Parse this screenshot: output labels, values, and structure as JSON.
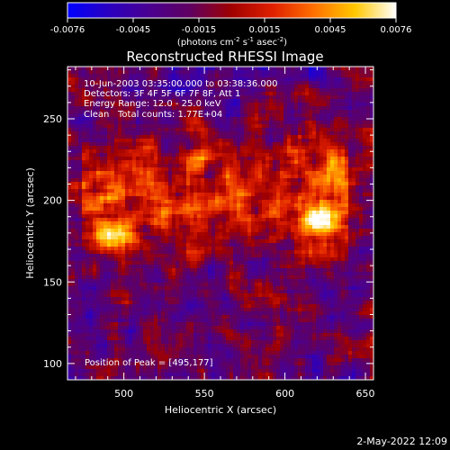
{
  "chart_data": {
    "type": "heatmap",
    "title": "Reconstructed RHESSI Image",
    "colorbar": {
      "min": -0.0076,
      "max": 0.0076,
      "tick_labels": [
        "-0.0076",
        "-0.0045",
        "-0.0015",
        "0.0015",
        "0.0045",
        "0.0076"
      ],
      "unit_parts": {
        "a": "(photons cm",
        "b": "-2",
        "c": " s",
        "d": "-1",
        "e": " asec",
        "f": "-2",
        "g": ")"
      },
      "colormap": [
        "#0000ff",
        "#2a00c0",
        "#4a0090",
        "#600060",
        "#a00000",
        "#e02000",
        "#ff7000",
        "#ffc800",
        "#ffffff"
      ]
    },
    "xlabel": "Heliocentric X (arcsec)",
    "ylabel": "Heliocentric Y (arcsec)",
    "xlim": [
      465,
      655
    ],
    "ylim": [
      90,
      282
    ],
    "xticks": [
      500,
      550,
      600,
      650
    ],
    "yticks": [
      100,
      150,
      200,
      250
    ],
    "peak": {
      "x": 495,
      "y": 177,
      "value": 0.0076
    },
    "sources": [
      {
        "x": 495,
        "y": 177,
        "value": 0.0076
      },
      {
        "x": 620,
        "y": 187,
        "value": 0.0064
      }
    ],
    "annotations": {
      "time": "10-Jun-2003 03:35:00.000 to 03:38:36.000",
      "detectors": "Detectors: 3F 4F 5F 6F 7F 8F, Att 1",
      "energy": "Energy Range: 12.0 - 25.0 keV",
      "method": "Clean",
      "counts": "Total counts: 1.77E+04",
      "peak_text": "Position of Peak = [495,177]"
    }
  },
  "footer": {
    "timestamp": "2-May-2022 12:09"
  }
}
